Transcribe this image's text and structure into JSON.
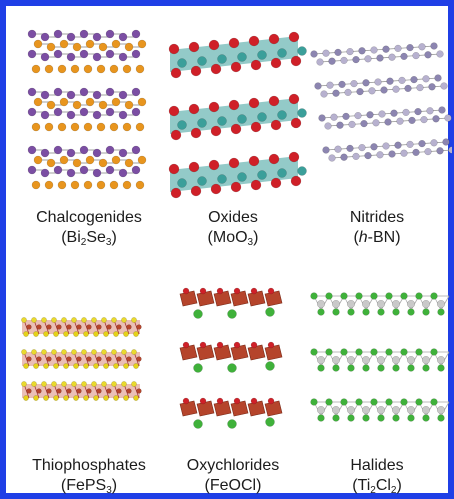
{
  "colors": {
    "border": "#1f3fe6",
    "bi": "#7b4ea3",
    "se": "#e8951e",
    "mo": "#3b9f9a",
    "o": "#cf2028",
    "b": "#b7b1cf",
    "n": "#8c85b0",
    "fe": "#b5442b",
    "p": "#e6d21a",
    "s": "#e9d92e",
    "cl": "#3fb13a",
    "ti": "#c9c9c9"
  },
  "panels": [
    {
      "name": "Chalcogenides",
      "formula": [
        {
          "t": "(Bi"
        },
        {
          "sub": "2"
        },
        {
          "t": "Se"
        },
        {
          "sub": "3"
        },
        {
          "t": ")"
        }
      ],
      "icon": "bi2se3-structure-icon"
    },
    {
      "name": "Oxides",
      "formula": [
        {
          "t": "(MoO"
        },
        {
          "sub": "3"
        },
        {
          "t": ")"
        }
      ],
      "icon": "moo3-structure-icon"
    },
    {
      "name": "Nitrides",
      "formula": [
        {
          "t": "("
        },
        {
          "i": "h"
        },
        {
          "t": "-BN)"
        }
      ],
      "icon": "hbn-structure-icon"
    },
    {
      "name": "Thiophosphates",
      "formula": [
        {
          "t": "(FePS"
        },
        {
          "sub": "3"
        },
        {
          "t": ")"
        }
      ],
      "icon": "feps3-structure-icon"
    },
    {
      "name": "Oxychlorides",
      "formula": [
        {
          "t": "(FeOCl)"
        }
      ],
      "icon": "feocl-structure-icon"
    },
    {
      "name": "Halides",
      "formula": [
        {
          "t": "(Ti"
        },
        {
          "sub": "2"
        },
        {
          "t": "Cl"
        },
        {
          "sub": "2"
        },
        {
          "t": ")"
        }
      ],
      "icon": "ti2cl2-structure-icon"
    }
  ]
}
